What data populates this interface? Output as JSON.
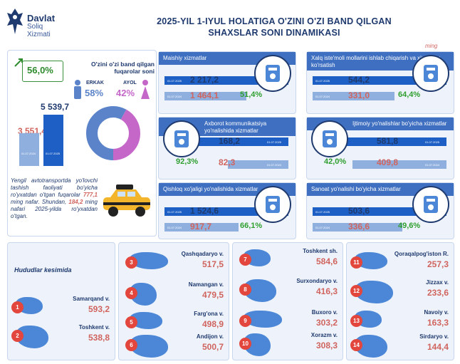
{
  "logo": {
    "line1": "Davlat",
    "line2": "Soliq",
    "line3": "Xizmati"
  },
  "title": {
    "line1": "2025-YIL 1-IYUL HOLATIGA O'ZINI O'ZI BAND QILGAN",
    "line2": "SHAXSLAR SONI DINAMIKASI"
  },
  "unit": "ming",
  "total": {
    "growth": "56,0%",
    "v2024": "3 551,4",
    "v2025": "5 539,7",
    "d2024": "01.07.2024",
    "d2025": "01.07.2025"
  },
  "gender": {
    "title": "O'zini o'zi band qilgan fuqarolar soni",
    "male_label": "ERKAK",
    "male": "58%",
    "female_label": "AYOL",
    "female": "42%",
    "male_share": 58,
    "female_share": 42,
    "male_color": "#5b83c9",
    "female_color": "#c567c9"
  },
  "taxi": {
    "text1": "Yengil avtotransportda yo'lovchi tashish faoliyati bo'yicha ro'yxatdan o'tgan fuqarolar",
    "v1": "777,1",
    "text1b": "ming nafar.",
    "text2": "Shundan,",
    "v2": "184,2",
    "text2b": "ming nafari 2025-yilda ro'yxatdan o'tgan."
  },
  "cards": [
    {
      "title": "Maishiy xizmatlar",
      "v2025": "2 217,2",
      "v2024": "1 464,1",
      "pct": "51,4%",
      "r2025": 1,
      "r2024": 0.66,
      "icon": "spray-bottle-icon"
    },
    {
      "title": "Xalq iste'moli mollarini ishlab chiqarish va xizmatlar ko'rsatish",
      "v2025": "544,2",
      "v2024": "331,0",
      "pct": "64,4%",
      "r2025": 1,
      "r2024": 0.61,
      "icon": "plate-cutlery-icon"
    },
    {
      "title": "Axborot kommunikatsiya yo'nalishida xizmatlar",
      "v2025": "168,2",
      "v2024": "82,3",
      "pct": "92,3%",
      "r2025": 1,
      "r2024": 0.49,
      "icon": "laptop-gear-icon"
    },
    {
      "title": "Ijtimoiy yo'nalishlar bo'yicha xizmatlar",
      "v2025": "581,8",
      "v2024": "409,8",
      "pct": "42,0%",
      "r2025": 1,
      "r2024": 0.7,
      "icon": "sewing-machine-icon"
    },
    {
      "title": "Qishloq xo'jaligi yo'nalishida xizmatlar",
      "v2025": "1 524,6",
      "v2024": "917,7",
      "pct": "66,1%",
      "r2025": 1,
      "r2024": 0.6,
      "icon": "shovel-icon"
    },
    {
      "title": "Sanoat yo'nalishi bo'yicha xizmatlar",
      "v2025": "503,6",
      "v2024": "336,6",
      "pct": "49,6%",
      "r2025": 1,
      "r2024": 0.67,
      "icon": "brick-wall-icon"
    }
  ],
  "date_small": {
    "d2025": "01.07.2025",
    "d2024": "01.07.2024"
  },
  "regions_title": "Hududlar kesimida",
  "regions": [
    {
      "n": "1",
      "name": "Samarqand v.",
      "value": "593,2"
    },
    {
      "n": "2",
      "name": "Toshkent v.",
      "value": "538,8"
    },
    {
      "n": "3",
      "name": "Qashqadaryo v.",
      "value": "517,5"
    },
    {
      "n": "4",
      "name": "Namangan v.",
      "value": "479,5"
    },
    {
      "n": "5",
      "name": "Farg'ona v.",
      "value": "498,9"
    },
    {
      "n": "6",
      "name": "Andijon v.",
      "value": "500,7"
    },
    {
      "n": "7",
      "name": "Toshkent sh.",
      "value": "584,6"
    },
    {
      "n": "8",
      "name": "Surxondaryo v.",
      "value": "416,3"
    },
    {
      "n": "9",
      "name": "Buxoro v.",
      "value": "303,2"
    },
    {
      "n": "10",
      "name": "Xorazm v.",
      "value": "308,3"
    },
    {
      "n": "11",
      "name": "Qoraqalpog'iston R.",
      "value": "257,3"
    },
    {
      "n": "12",
      "name": "Jizzax v.",
      "value": "233,6"
    },
    {
      "n": "13",
      "name": "Navoiy v.",
      "value": "163,3"
    },
    {
      "n": "14",
      "name": "Sirdaryo v.",
      "value": "144,4"
    }
  ],
  "chart_data": {
    "type": "bar",
    "title": "2025-YIL 1-IYUL HOLATIGA O'ZINI O'ZI BAND QILGAN SHAXSLAR SONI DINAMIKASI",
    "categories": [
      "01.07.2024",
      "01.07.2025"
    ],
    "series": [
      {
        "values": [
          3551.4,
          5539.7
        ]
      }
    ],
    "ylabel": "",
    "note": "ming"
  }
}
